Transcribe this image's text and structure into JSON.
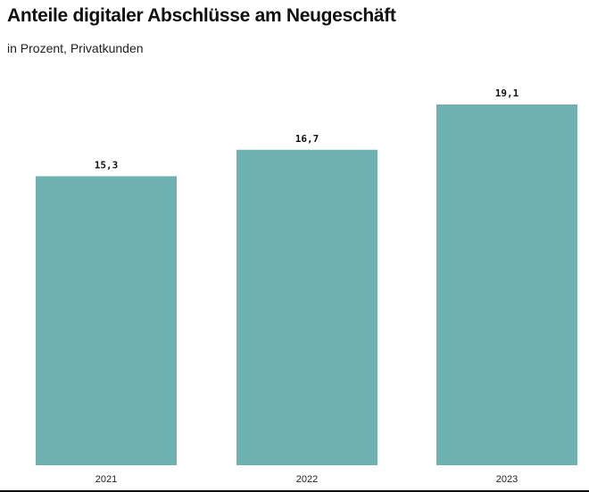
{
  "header": {
    "title": "Anteile digitaler Abschlüsse am Neugeschäft",
    "subtitle": "in Prozent, Privatkunden"
  },
  "colors": {
    "bar": "#6fb1b0",
    "text": "#111111"
  },
  "chart_data": {
    "type": "bar",
    "categories": [
      "2021",
      "2022",
      "2023"
    ],
    "values": [
      15.3,
      16.7,
      19.1
    ],
    "value_labels": [
      "15,3",
      "16,7",
      "19,1"
    ],
    "title": "Anteile digitaler Abschlüsse am Neugeschäft",
    "subtitle": "in Prozent, Privatkunden",
    "xlabel": "",
    "ylabel": "",
    "ylim": [
      0,
      19.1
    ],
    "grid": false,
    "legend": "none"
  }
}
